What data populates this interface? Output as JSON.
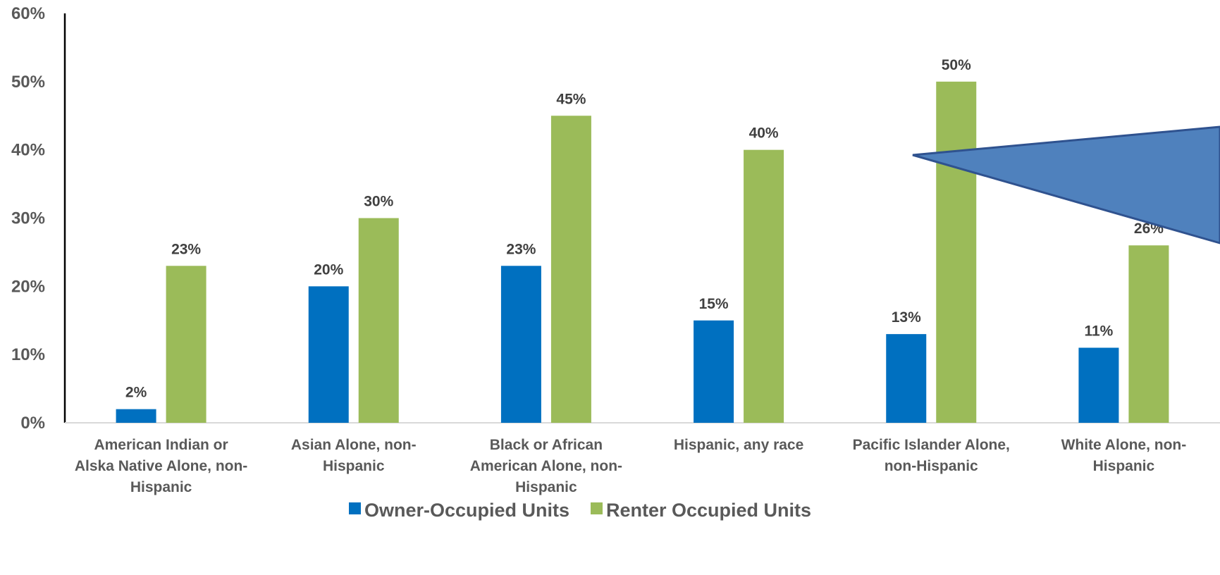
{
  "chart_data": {
    "type": "bar",
    "title": "",
    "xlabel": "",
    "ylabel": "",
    "ylim": [
      0,
      60
    ],
    "y_ticks": [
      "0%",
      "10%",
      "20%",
      "30%",
      "40%",
      "50%",
      "60%"
    ],
    "categories": [
      [
        "American Indian or",
        "Alska Native Alone, non-",
        "Hispanic"
      ],
      [
        "Asian Alone, non-",
        "Hispanic"
      ],
      [
        "Black or African",
        "American Alone, non-",
        "Hispanic"
      ],
      [
        "Hispanic, any race"
      ],
      [
        "Pacific Islander Alone,",
        "non-Hispanic"
      ],
      [
        "White Alone, non-",
        "Hispanic"
      ]
    ],
    "series": [
      {
        "name": "Owner-Occupied Units",
        "color": "#0070C0",
        "values": [
          2,
          20,
          23,
          15,
          13,
          11
        ],
        "labels": [
          "2%",
          "20%",
          "23%",
          "15%",
          "13%",
          "11%"
        ]
      },
      {
        "name": "Renter Occupied Units",
        "color": "#9BBB59",
        "values": [
          23,
          30,
          45,
          40,
          50,
          26
        ],
        "labels": [
          "23%",
          "30%",
          "45%",
          "40%",
          "50%",
          "26%"
        ]
      }
    ],
    "grid": false,
    "legend": "bottom",
    "annotation_shape": {
      "type": "callout-pointer",
      "color": "#4F81BD",
      "text": ""
    }
  }
}
